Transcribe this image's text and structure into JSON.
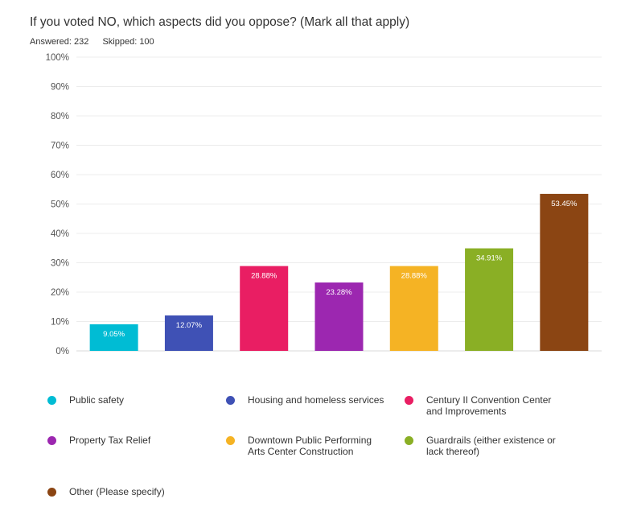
{
  "question": {
    "title": "If you voted NO, which aspects did you oppose? (Mark all that apply)",
    "answered": "Answered: 232",
    "skipped": "Skipped: 100"
  },
  "chart_data": {
    "type": "bar",
    "title": "If you voted NO, which aspects did you oppose? (Mark all that apply)",
    "xlabel": "",
    "ylabel": "",
    "ylim": [
      0,
      100
    ],
    "grid": true,
    "y_ticks": [
      "0%",
      "10%",
      "20%",
      "30%",
      "40%",
      "50%",
      "60%",
      "70%",
      "80%",
      "90%",
      "100%"
    ],
    "categories": [
      "Public safety",
      "Housing and homeless services",
      "Century II Convention Center and Improvements",
      "Property Tax Relief",
      "Downtown Public Performing Arts Center Construction",
      "Guardrails (either existence or lack thereof)",
      "Other (Please specify)"
    ],
    "values": [
      9.05,
      12.07,
      28.88,
      23.28,
      28.88,
      34.91,
      53.45
    ],
    "data_labels": [
      "9.05%",
      "12.07%",
      "28.88%",
      "23.28%",
      "28.88%",
      "34.91%",
      "53.45%"
    ],
    "colors": [
      "#00bcd4",
      "#3f51b5",
      "#e91e63",
      "#9c27b0",
      "#f5b324",
      "#8aaf25",
      "#8b4513"
    ],
    "legend_placement": "bottom"
  },
  "legend": {
    "items": [
      {
        "label": "Public safety",
        "color": "#00bcd4"
      },
      {
        "label": "Housing and homeless services",
        "color": "#3f51b5"
      },
      {
        "label": "Century II Convention Center and Improvements",
        "color": "#e91e63"
      },
      {
        "label": "Property Tax Relief",
        "color": "#9c27b0"
      },
      {
        "label": "Downtown Public Performing Arts Center Construction",
        "color": "#f5b324"
      },
      {
        "label": "Guardrails (either existence or lack thereof)",
        "color": "#8aaf25"
      },
      {
        "label": "Other (Please specify)",
        "color": "#8b4513"
      }
    ]
  }
}
